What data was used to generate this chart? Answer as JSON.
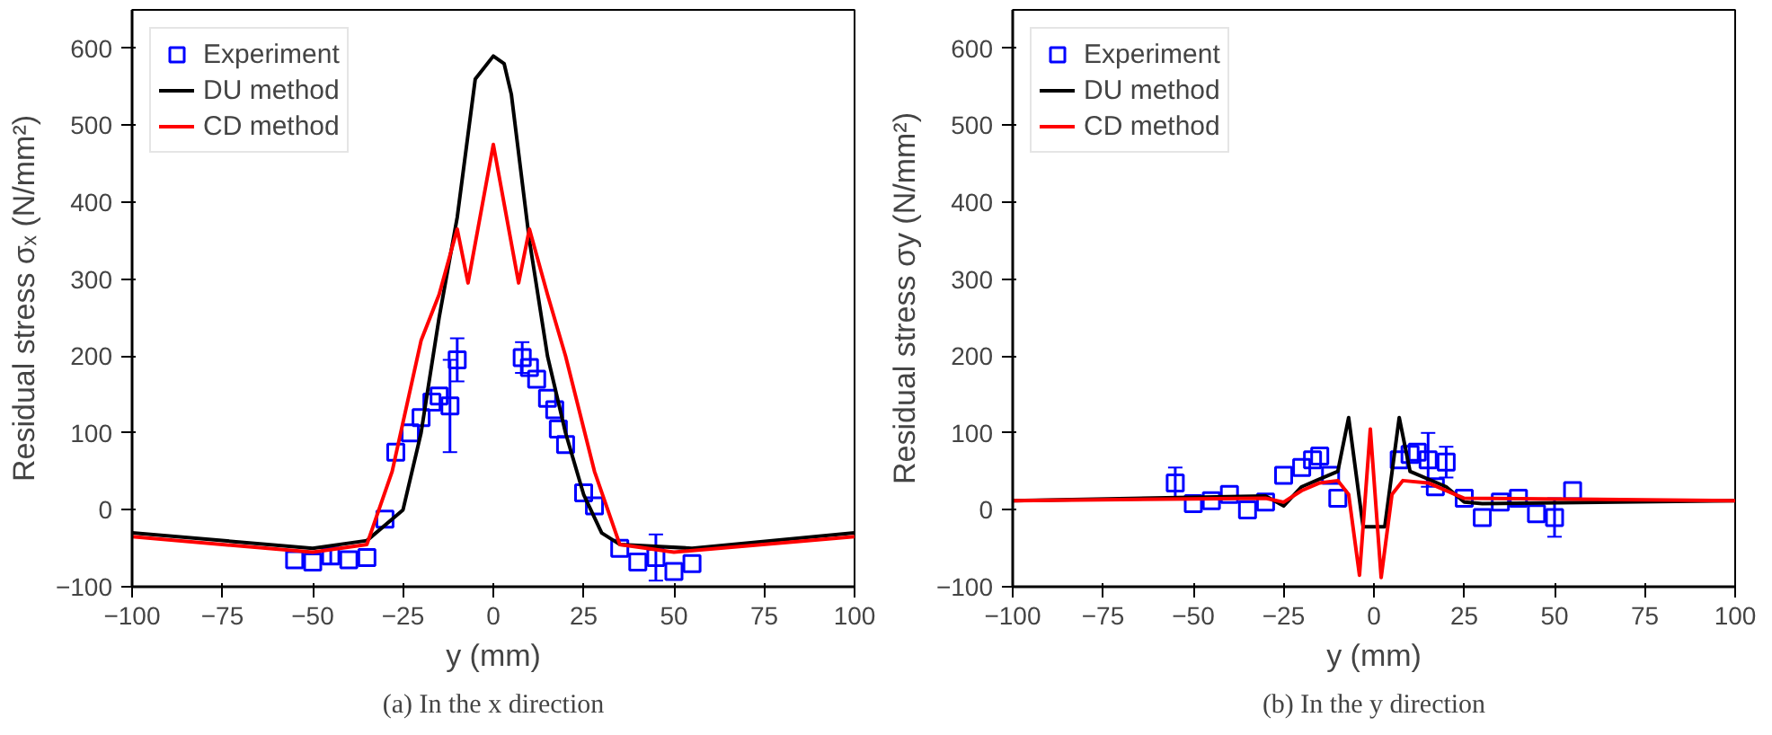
{
  "chart_data": [
    {
      "type": "line",
      "xlabel": "y (mm)",
      "ylabel": "Residual stress σₓ (N/mm²)",
      "annotations": [
        "(a) In the x direction"
      ],
      "xlim": [
        -100,
        100
      ],
      "ylim": [
        -100,
        650
      ],
      "xticks": [
        -100,
        -75,
        -50,
        -25,
        0,
        25,
        50,
        75,
        100
      ],
      "yticks": [
        -100,
        0,
        100,
        200,
        300,
        400,
        500,
        600
      ],
      "grid": false,
      "legend": "top left",
      "series": [
        {
          "name": "Experiment",
          "type": "scatter",
          "marker": "square",
          "color": "#0000ff",
          "x": [
            -55,
            -50,
            -45,
            -40,
            -35,
            -30,
            -27,
            -23,
            -20,
            -17,
            -15,
            -12,
            -10,
            8,
            10,
            12,
            15,
            17,
            18,
            20,
            25,
            28,
            35,
            40,
            45,
            50,
            55
          ],
          "values": [
            -65,
            -68,
            -60,
            -65,
            -62,
            -12,
            75,
            100,
            120,
            140,
            148,
            135,
            195,
            198,
            185,
            170,
            145,
            130,
            105,
            85,
            22,
            5,
            -50,
            -68,
            -62,
            -80,
            -70
          ],
          "errors": [
            null,
            null,
            10,
            null,
            null,
            null,
            null,
            null,
            null,
            null,
            null,
            60,
            28,
            20,
            null,
            null,
            null,
            null,
            null,
            null,
            null,
            null,
            null,
            null,
            30,
            null,
            null
          ]
        },
        {
          "name": "DU method",
          "color": "#000000",
          "x": [
            -100,
            -50,
            -35,
            -25,
            -20,
            -15,
            -10,
            -5,
            0,
            3,
            5,
            10,
            15,
            20,
            25,
            30,
            35,
            55,
            100
          ],
          "values": [
            -30,
            -50,
            -40,
            0,
            100,
            250,
            380,
            560,
            590,
            580,
            540,
            350,
            200,
            100,
            20,
            -30,
            -45,
            -50,
            -30
          ]
        },
        {
          "name": "CD method",
          "color": "#ff0000",
          "x": [
            -100,
            -50,
            -35,
            -28,
            -20,
            -15,
            -10,
            -7,
            0,
            7,
            10,
            15,
            20,
            28,
            35,
            50,
            100
          ],
          "values": [
            -35,
            -55,
            -45,
            50,
            220,
            280,
            365,
            295,
            475,
            295,
            365,
            280,
            200,
            50,
            -45,
            -55,
            -35
          ]
        }
      ]
    },
    {
      "type": "line",
      "xlabel": "y (mm)",
      "ylabel": "Residual stress σy (N/mm²)",
      "annotations": [
        "(b) In the y direction"
      ],
      "xlim": [
        -100,
        100
      ],
      "ylim": [
        -100,
        650
      ],
      "xticks": [
        -100,
        -75,
        -50,
        -25,
        0,
        25,
        50,
        75,
        100
      ],
      "yticks": [
        -100,
        0,
        100,
        200,
        300,
        400,
        500,
        600
      ],
      "grid": false,
      "legend": "top left",
      "series": [
        {
          "name": "Experiment",
          "type": "scatter",
          "marker": "square",
          "color": "#0000ff",
          "x": [
            -55,
            -50,
            -45,
            -40,
            -35,
            -30,
            -25,
            -20,
            -17,
            -15,
            -12,
            -10,
            7,
            10,
            12,
            15,
            17,
            20,
            25,
            30,
            35,
            40,
            45,
            50,
            55
          ],
          "values": [
            35,
            8,
            12,
            20,
            0,
            10,
            45,
            55,
            65,
            70,
            45,
            15,
            65,
            72,
            75,
            65,
            30,
            62,
            15,
            -10,
            10,
            15,
            -5,
            -10,
            25
          ],
          "errors": [
            20,
            null,
            null,
            null,
            null,
            null,
            null,
            null,
            null,
            null,
            null,
            null,
            null,
            null,
            null,
            35,
            null,
            20,
            null,
            null,
            null,
            null,
            null,
            25,
            null
          ]
        },
        {
          "name": "DU method",
          "color": "#000000",
          "x": [
            -100,
            -30,
            -25,
            -20,
            -15,
            -10,
            -7,
            -3,
            3,
            7,
            10,
            20,
            25,
            30,
            100
          ],
          "values": [
            12,
            18,
            5,
            30,
            40,
            50,
            120,
            -22,
            -22,
            120,
            50,
            30,
            10,
            8,
            12
          ]
        },
        {
          "name": "CD method",
          "color": "#ff0000",
          "x": [
            -100,
            -30,
            -25,
            -20,
            -15,
            -10,
            -7,
            -4,
            -1,
            2,
            5,
            8,
            15,
            25,
            100
          ],
          "values": [
            12,
            15,
            10,
            25,
            35,
            38,
            20,
            -85,
            105,
            -88,
            20,
            38,
            35,
            15,
            12
          ]
        }
      ]
    }
  ]
}
